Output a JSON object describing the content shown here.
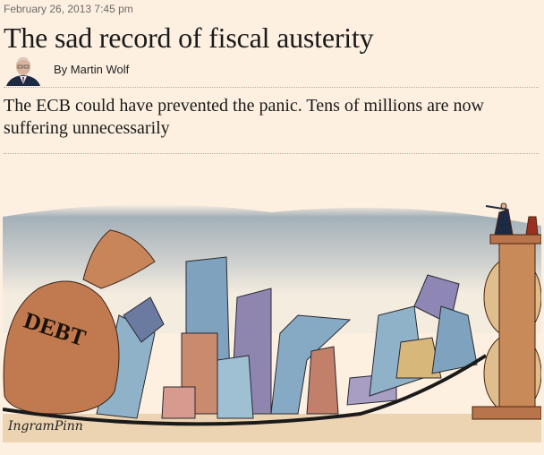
{
  "article": {
    "date": "February 26, 2013 7:45 pm",
    "title": "The sad record of fiscal austerity",
    "byline": "By Martin Wolf",
    "standfirst": "The ECB could have prevented the panic. Tens of millions are now suffering unnecessarily"
  },
  "illustration": {
    "bag_label": "DEBT",
    "signature": "IngramPinn"
  },
  "colors": {
    "background": "#fdf0e1",
    "text": "#1a1a1a"
  }
}
